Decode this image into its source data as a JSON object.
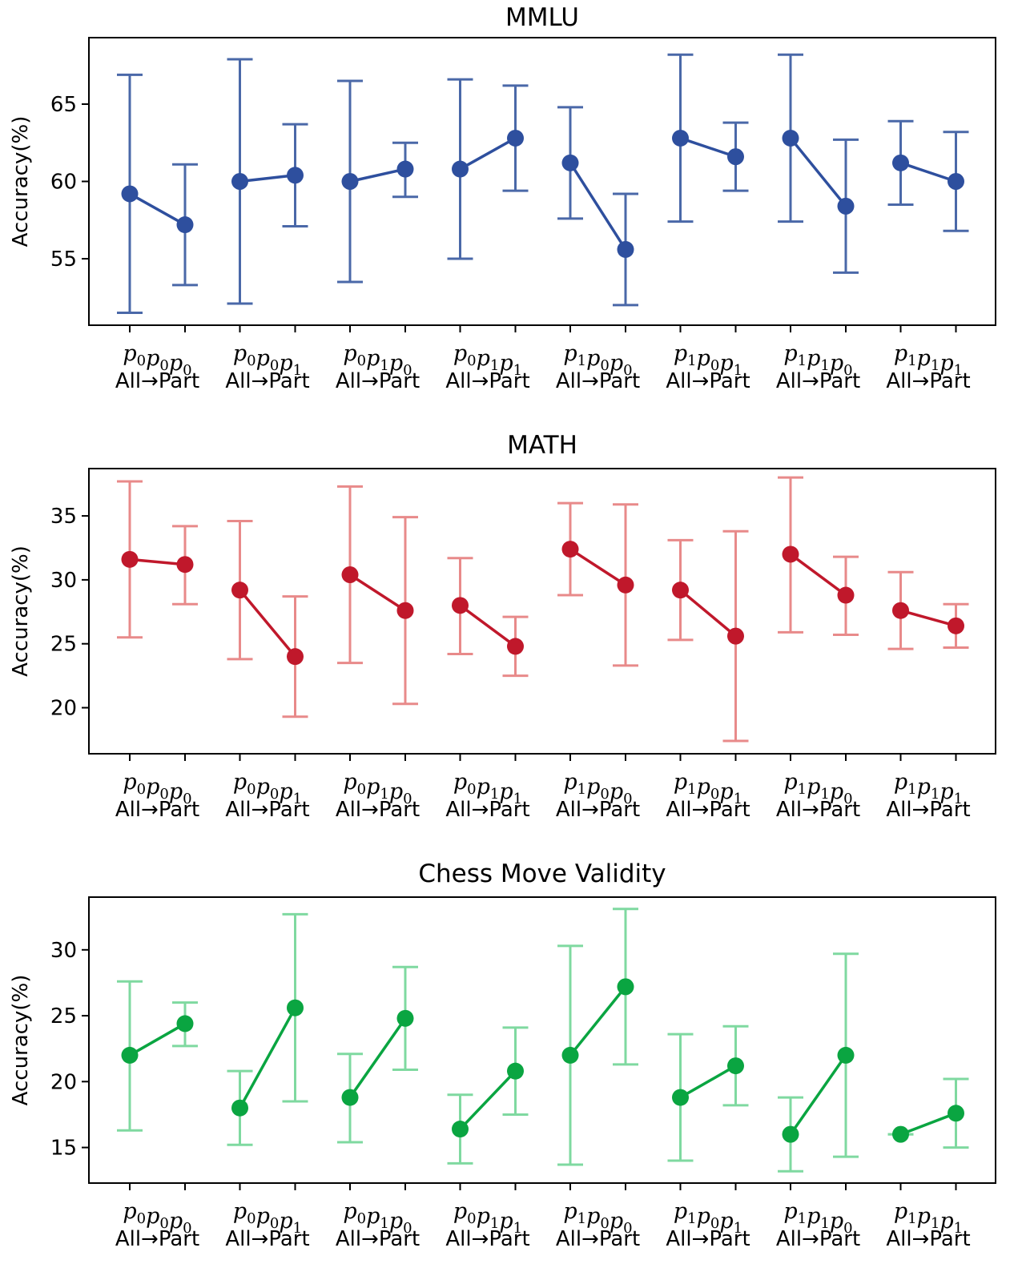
{
  "chart_data": [
    {
      "type": "line",
      "title": "MMLU",
      "ylabel": "Accuracy(%)",
      "ylim": [
        50.7,
        69.3
      ],
      "yticks": [
        55,
        60,
        65
      ],
      "groups": [
        {
          "symbols": [
            [
              "p",
              "0"
            ],
            [
              "p",
              "0"
            ],
            [
              "p",
              "0"
            ]
          ],
          "label": "All→Part"
        },
        {
          "symbols": [
            [
              "p",
              "0"
            ],
            [
              "p",
              "0"
            ],
            [
              "p",
              "1"
            ]
          ],
          "label": "All→Part"
        },
        {
          "symbols": [
            [
              "p",
              "0"
            ],
            [
              "p",
              "1"
            ],
            [
              "p",
              "0"
            ]
          ],
          "label": "All→Part"
        },
        {
          "symbols": [
            [
              "p",
              "0"
            ],
            [
              "p",
              "1"
            ],
            [
              "p",
              "1"
            ]
          ],
          "label": "All→Part"
        },
        {
          "symbols": [
            [
              "p",
              "1"
            ],
            [
              "p",
              "0"
            ],
            [
              "p",
              "0"
            ]
          ],
          "label": "All→Part"
        },
        {
          "symbols": [
            [
              "p",
              "1"
            ],
            [
              "p",
              "0"
            ],
            [
              "p",
              "1"
            ]
          ],
          "label": "All→Part"
        },
        {
          "symbols": [
            [
              "p",
              "1"
            ],
            [
              "p",
              "1"
            ],
            [
              "p",
              "0"
            ]
          ],
          "label": "All→Part"
        },
        {
          "symbols": [
            [
              "p",
              "1"
            ],
            [
              "p",
              "1"
            ],
            [
              "p",
              "1"
            ]
          ],
          "label": "All→Part"
        }
      ],
      "series": [
        {
          "values": [
            59.2,
            57.2
          ],
          "low": [
            51.5,
            53.3
          ],
          "high": [
            66.9,
            61.1
          ]
        },
        {
          "values": [
            60.0,
            60.4
          ],
          "low": [
            52.1,
            57.1
          ],
          "high": [
            67.9,
            63.7
          ]
        },
        {
          "values": [
            60.0,
            60.8
          ],
          "low": [
            53.5,
            59.0
          ],
          "high": [
            66.5,
            62.5
          ]
        },
        {
          "values": [
            60.8,
            62.8
          ],
          "low": [
            55.0,
            59.4
          ],
          "high": [
            66.6,
            66.2
          ]
        },
        {
          "values": [
            61.2,
            55.6
          ],
          "low": [
            57.6,
            52.0
          ],
          "high": [
            64.8,
            59.2
          ]
        },
        {
          "values": [
            62.8,
            61.6
          ],
          "low": [
            57.4,
            59.4
          ],
          "high": [
            68.2,
            63.8
          ]
        },
        {
          "values": [
            62.8,
            58.4
          ],
          "low": [
            57.4,
            54.1
          ],
          "high": [
            68.2,
            62.7
          ]
        },
        {
          "values": [
            61.2,
            60.0
          ],
          "low": [
            58.5,
            56.8
          ],
          "high": [
            63.9,
            63.2
          ]
        }
      ],
      "colors": {
        "line": "#2e4f9e",
        "errorbar": "#4a68a8"
      }
    },
    {
      "type": "line",
      "title": "MATH",
      "ylabel": "Accuracy(%)",
      "ylim": [
        16.4,
        38.7
      ],
      "yticks": [
        20,
        25,
        30,
        35
      ],
      "groups": [
        {
          "symbols": [
            [
              "p",
              "0"
            ],
            [
              "p",
              "0"
            ],
            [
              "p",
              "0"
            ]
          ],
          "label": "All→Part"
        },
        {
          "symbols": [
            [
              "p",
              "0"
            ],
            [
              "p",
              "0"
            ],
            [
              "p",
              "1"
            ]
          ],
          "label": "All→Part"
        },
        {
          "symbols": [
            [
              "p",
              "0"
            ],
            [
              "p",
              "1"
            ],
            [
              "p",
              "0"
            ]
          ],
          "label": "All→Part"
        },
        {
          "symbols": [
            [
              "p",
              "0"
            ],
            [
              "p",
              "1"
            ],
            [
              "p",
              "1"
            ]
          ],
          "label": "All→Part"
        },
        {
          "symbols": [
            [
              "p",
              "1"
            ],
            [
              "p",
              "0"
            ],
            [
              "p",
              "0"
            ]
          ],
          "label": "All→Part"
        },
        {
          "symbols": [
            [
              "p",
              "1"
            ],
            [
              "p",
              "0"
            ],
            [
              "p",
              "1"
            ]
          ],
          "label": "All→Part"
        },
        {
          "symbols": [
            [
              "p",
              "1"
            ],
            [
              "p",
              "1"
            ],
            [
              "p",
              "0"
            ]
          ],
          "label": "All→Part"
        },
        {
          "symbols": [
            [
              "p",
              "1"
            ],
            [
              "p",
              "1"
            ],
            [
              "p",
              "1"
            ]
          ],
          "label": "All→Part"
        }
      ],
      "series": [
        {
          "values": [
            31.6,
            31.2
          ],
          "low": [
            25.5,
            28.1
          ],
          "high": [
            37.7,
            34.2
          ]
        },
        {
          "values": [
            29.2,
            24.0
          ],
          "low": [
            23.8,
            19.3
          ],
          "high": [
            34.6,
            28.7
          ]
        },
        {
          "values": [
            30.4,
            27.6
          ],
          "low": [
            23.5,
            20.3
          ],
          "high": [
            37.3,
            34.9
          ]
        },
        {
          "values": [
            28.0,
            24.8
          ],
          "low": [
            24.2,
            22.5
          ],
          "high": [
            31.7,
            27.1
          ]
        },
        {
          "values": [
            32.4,
            29.6
          ],
          "low": [
            28.8,
            23.3
          ],
          "high": [
            36.0,
            35.9
          ]
        },
        {
          "values": [
            29.2,
            25.6
          ],
          "low": [
            25.3,
            17.4
          ],
          "high": [
            33.1,
            33.8
          ]
        },
        {
          "values": [
            32.0,
            28.8
          ],
          "low": [
            25.9,
            25.7
          ],
          "high": [
            38.0,
            31.8
          ]
        },
        {
          "values": [
            27.6,
            26.4
          ],
          "low": [
            24.6,
            24.7
          ],
          "high": [
            30.6,
            28.1
          ]
        }
      ],
      "colors": {
        "line": "#c0182b",
        "errorbar": "#e88a8a"
      }
    },
    {
      "type": "line",
      "title": "Chess Move Validity",
      "ylabel": "Accuracy(%)",
      "ylim": [
        12.3,
        34.0
      ],
      "yticks": [
        15,
        20,
        25,
        30
      ],
      "groups": [
        {
          "symbols": [
            [
              "p",
              "0"
            ],
            [
              "p",
              "0"
            ],
            [
              "p",
              "0"
            ]
          ],
          "label": "All→Part"
        },
        {
          "symbols": [
            [
              "p",
              "0"
            ],
            [
              "p",
              "0"
            ],
            [
              "p",
              "1"
            ]
          ],
          "label": "All→Part"
        },
        {
          "symbols": [
            [
              "p",
              "0"
            ],
            [
              "p",
              "1"
            ],
            [
              "p",
              "0"
            ]
          ],
          "label": "All→Part"
        },
        {
          "symbols": [
            [
              "p",
              "0"
            ],
            [
              "p",
              "1"
            ],
            [
              "p",
              "1"
            ]
          ],
          "label": "All→Part"
        },
        {
          "symbols": [
            [
              "p",
              "1"
            ],
            [
              "p",
              "0"
            ],
            [
              "p",
              "0"
            ]
          ],
          "label": "All→Part"
        },
        {
          "symbols": [
            [
              "p",
              "1"
            ],
            [
              "p",
              "0"
            ],
            [
              "p",
              "1"
            ]
          ],
          "label": "All→Part"
        },
        {
          "symbols": [
            [
              "p",
              "1"
            ],
            [
              "p",
              "1"
            ],
            [
              "p",
              "0"
            ]
          ],
          "label": "All→Part"
        },
        {
          "symbols": [
            [
              "p",
              "1"
            ],
            [
              "p",
              "1"
            ],
            [
              "p",
              "1"
            ]
          ],
          "label": "All→Part"
        }
      ],
      "series": [
        {
          "values": [
            22.0,
            24.4
          ],
          "low": [
            16.3,
            22.7
          ],
          "high": [
            27.6,
            26.0
          ]
        },
        {
          "values": [
            18.0,
            25.6
          ],
          "low": [
            15.2,
            18.5
          ],
          "high": [
            20.8,
            32.7
          ]
        },
        {
          "values": [
            18.8,
            24.8
          ],
          "low": [
            15.4,
            20.9
          ],
          "high": [
            22.1,
            28.7
          ]
        },
        {
          "values": [
            16.4,
            20.8
          ],
          "low": [
            13.8,
            17.5
          ],
          "high": [
            19.0,
            24.1
          ]
        },
        {
          "values": [
            22.0,
            27.2
          ],
          "low": [
            13.7,
            21.3
          ],
          "high": [
            30.3,
            33.1
          ]
        },
        {
          "values": [
            18.8,
            21.2
          ],
          "low": [
            14.0,
            18.2
          ],
          "high": [
            23.6,
            24.2
          ]
        },
        {
          "values": [
            16.0,
            22.0
          ],
          "low": [
            13.2,
            14.3
          ],
          "high": [
            18.8,
            29.7
          ]
        },
        {
          "values": [
            16.0,
            17.6
          ],
          "low": [
            16.0,
            15.0
          ],
          "high": [
            16.0,
            20.2
          ]
        }
      ],
      "colors": {
        "line": "#0aa541",
        "errorbar": "#7fd9a0"
      }
    }
  ]
}
